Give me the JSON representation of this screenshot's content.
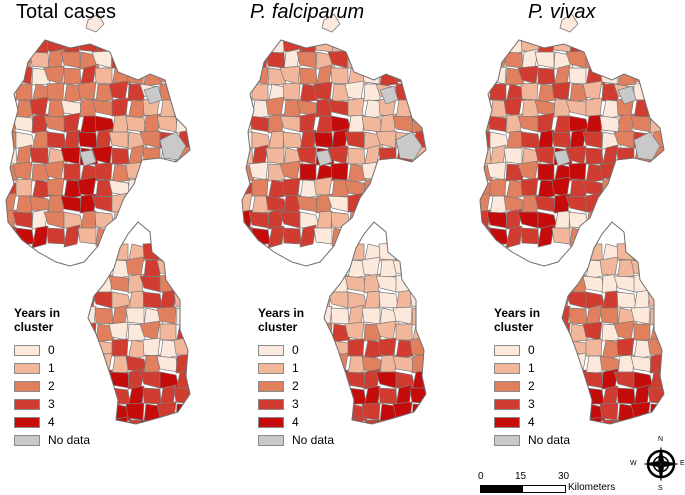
{
  "panels": [
    {
      "title": "Total cases",
      "italic": false
    },
    {
      "title": "P. falciparum",
      "italic": true
    },
    {
      "title": "P. vivax",
      "italic": true
    }
  ],
  "legend": {
    "title": "Years in cluster",
    "classes": [
      {
        "label": "0",
        "color": "#fde9dc"
      },
      {
        "label": "1",
        "color": "#f2b79b"
      },
      {
        "label": "2",
        "color": "#e0805f"
      },
      {
        "label": "3",
        "color": "#d03c30"
      },
      {
        "label": "4",
        "color": "#c60b0b"
      },
      {
        "label": "No data",
        "color": "#c9c9c9"
      }
    ]
  },
  "scale_bar": {
    "ticks": [
      "0",
      "15",
      "30"
    ],
    "unit": "Kilometers"
  },
  "compass": {
    "n": "N",
    "s": "S",
    "e": "E",
    "w": "W"
  }
}
